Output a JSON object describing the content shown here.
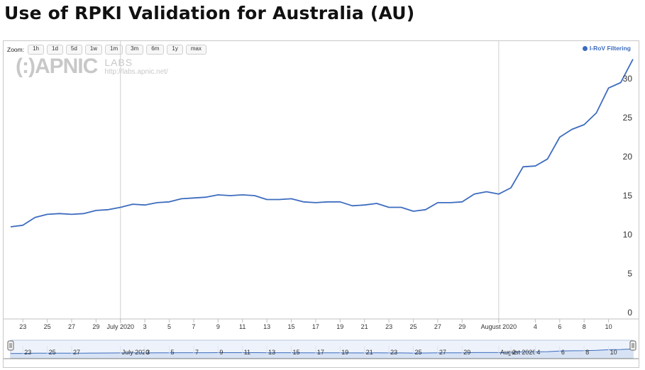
{
  "page": {
    "title": "Use of RPKI Validation for Australia (AU)"
  },
  "zoom": {
    "label": "Zoom:",
    "buttons": [
      "1h",
      "1d",
      "5d",
      "1w",
      "1m",
      "3m",
      "6m",
      "1y",
      "max"
    ]
  },
  "watermark": {
    "logo": "(:)APNIC",
    "labs": "LABS",
    "url": "http://labs.apnic.net/"
  },
  "legend": {
    "label": "I-RoV Filtering",
    "color": "#3d6cbf"
  },
  "chart_data": {
    "type": "line",
    "title": "Use of RPKI Validation for Australia (AU)",
    "xlabel": "",
    "ylabel": "",
    "ylim": [
      0,
      33
    ],
    "y_ticks": [
      0,
      5,
      10,
      15,
      20,
      25,
      30
    ],
    "x_ticks": [
      "23",
      "25",
      "27",
      "29",
      "July 2020",
      "3",
      "5",
      "7",
      "9",
      "11",
      "13",
      "15",
      "17",
      "19",
      "21",
      "23",
      "25",
      "27",
      "29",
      "August 2020",
      "4",
      "6",
      "8",
      "10"
    ],
    "navigator_ticks": [
      "23",
      "25",
      "27",
      "July 2020",
      "3",
      "5",
      "7",
      "9",
      "11",
      "13",
      "15",
      "17",
      "19",
      "21",
      "23",
      "25",
      "27",
      "29",
      "August 2020",
      "2",
      "4",
      "6",
      "8",
      "10"
    ],
    "grid": false,
    "legend_position": "top-right",
    "series": [
      {
        "name": "I-RoV Filtering",
        "color": "#3d6cbf",
        "x": [
          "2020-06-22",
          "2020-06-23",
          "2020-06-24",
          "2020-06-25",
          "2020-06-26",
          "2020-06-27",
          "2020-06-28",
          "2020-06-29",
          "2020-06-30",
          "2020-07-01",
          "2020-07-02",
          "2020-07-03",
          "2020-07-04",
          "2020-07-05",
          "2020-07-06",
          "2020-07-07",
          "2020-07-08",
          "2020-07-09",
          "2020-07-10",
          "2020-07-11",
          "2020-07-12",
          "2020-07-13",
          "2020-07-14",
          "2020-07-15",
          "2020-07-16",
          "2020-07-17",
          "2020-07-18",
          "2020-07-19",
          "2020-07-20",
          "2020-07-21",
          "2020-07-22",
          "2020-07-23",
          "2020-07-24",
          "2020-07-25",
          "2020-07-26",
          "2020-07-27",
          "2020-07-28",
          "2020-07-29",
          "2020-07-30",
          "2020-07-31",
          "2020-08-01",
          "2020-08-02",
          "2020-08-03",
          "2020-08-04",
          "2020-08-05",
          "2020-08-06",
          "2020-08-07",
          "2020-08-08",
          "2020-08-09",
          "2020-08-10",
          "2020-08-11",
          "2020-08-12"
        ],
        "values": [
          11.0,
          11.2,
          12.2,
          12.6,
          12.7,
          12.6,
          12.7,
          13.1,
          13.2,
          13.5,
          13.9,
          13.8,
          14.1,
          14.2,
          14.6,
          14.7,
          14.8,
          15.1,
          15.0,
          15.1,
          15.0,
          14.5,
          14.5,
          14.6,
          14.2,
          14.1,
          14.2,
          14.2,
          13.7,
          13.8,
          14.0,
          13.5,
          13.5,
          13.0,
          13.2,
          14.1,
          14.1,
          14.2,
          15.2,
          15.5,
          15.2,
          16.0,
          18.7,
          18.8,
          19.7,
          22.5,
          23.5,
          24.1,
          25.6,
          28.8,
          29.5,
          32.5
        ]
      }
    ]
  }
}
